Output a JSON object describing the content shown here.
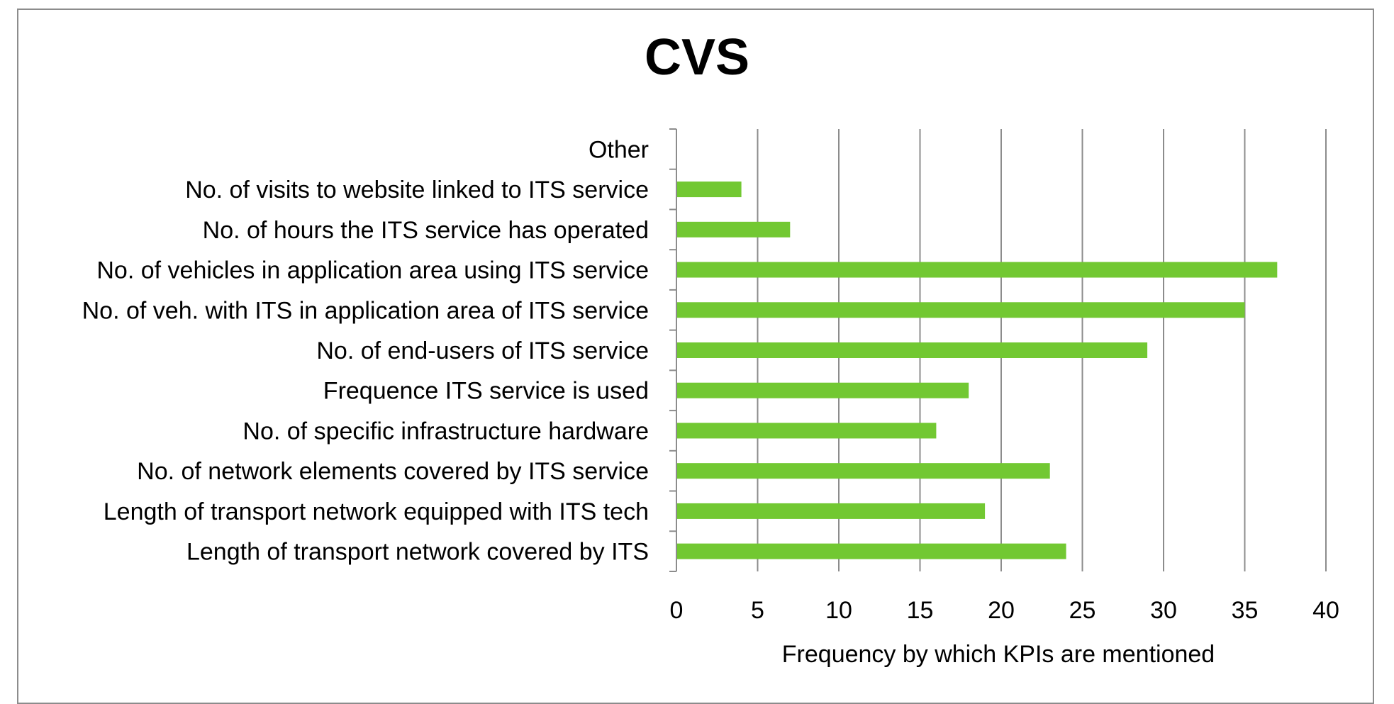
{
  "chart_data": {
    "type": "bar",
    "orientation": "horizontal",
    "title": "CVS",
    "xlabel": "Frequency by which KPIs are mentioned",
    "ylabel": "",
    "xlim": [
      0,
      40
    ],
    "xticks": [
      0,
      5,
      10,
      15,
      20,
      25,
      30,
      35,
      40
    ],
    "grid": "vertical",
    "legend": "none",
    "bar_color": "#72c832",
    "categories": [
      "Other",
      "No. of visits to website linked to ITS service",
      "No. of hours the ITS service has operated",
      "No. of vehicles in application area using ITS service",
      "No. of veh. with ITS in application area of ITS service",
      "No. of end-users of ITS service",
      "Frequence ITS service is used",
      "No. of specific infrastructure hardware",
      "No. of network elements covered by ITS service",
      "Length of transport network equipped with ITS tech",
      "Length of transport network covered by ITS"
    ],
    "values": [
      0,
      4,
      7,
      37,
      35,
      29,
      18,
      16,
      23,
      19,
      24
    ]
  }
}
